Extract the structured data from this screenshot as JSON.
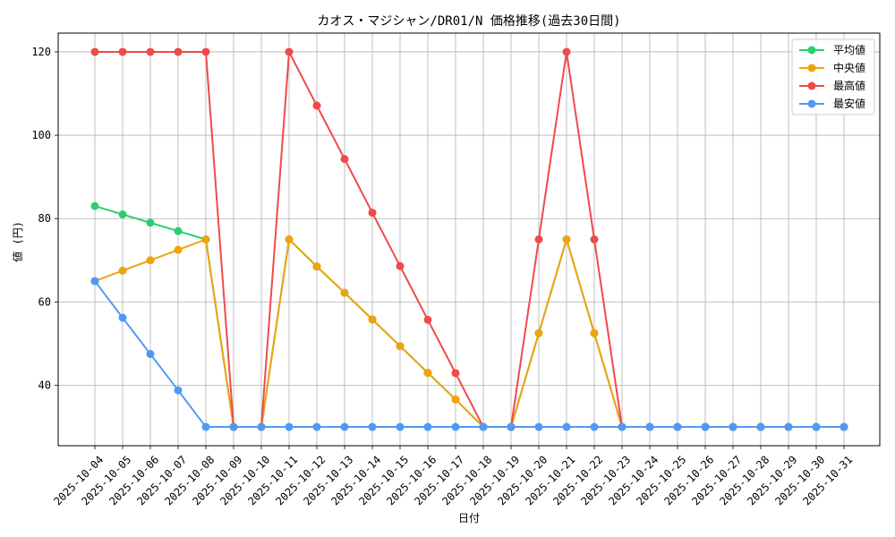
{
  "chart_data": {
    "type": "line",
    "title": "カオス・マジシャン/DR01/N 価格推移(過去30日間)",
    "xlabel": "日付",
    "ylabel": "値 (円)",
    "ylim": [
      25.5,
      124.5
    ],
    "yticks": [
      40,
      60,
      80,
      100,
      120
    ],
    "grid": true,
    "legend_position": "top-right",
    "categories": [
      "2025-10-04",
      "2025-10-05",
      "2025-10-06",
      "2025-10-07",
      "2025-10-08",
      "2025-10-09",
      "2025-10-10",
      "2025-10-11",
      "2025-10-12",
      "2025-10-13",
      "2025-10-14",
      "2025-10-15",
      "2025-10-16",
      "2025-10-17",
      "2025-10-18",
      "2025-10-19",
      "2025-10-20",
      "2025-10-21",
      "2025-10-22",
      "2025-10-23",
      "2025-10-24",
      "2025-10-25",
      "2025-10-26",
      "2025-10-27",
      "2025-10-28",
      "2025-10-29",
      "2025-10-30",
      "2025-10-31"
    ],
    "series": [
      {
        "name": "平均値",
        "color": "#2ecc71",
        "values": [
          83,
          81,
          79,
          77,
          75,
          30,
          30,
          75,
          68.5,
          62.2,
          55.8,
          49.4,
          43,
          36.6,
          30,
          30,
          52.5,
          75,
          52.5,
          30,
          30,
          30,
          30,
          30,
          30,
          30,
          30,
          30
        ]
      },
      {
        "name": "中央値",
        "color": "#f0a30a",
        "values": [
          65,
          67.5,
          70,
          72.5,
          75,
          30,
          30,
          75,
          68.5,
          62.2,
          55.8,
          49.4,
          43,
          36.6,
          30,
          30,
          52.5,
          75,
          52.5,
          30,
          30,
          30,
          30,
          30,
          30,
          30,
          30,
          30
        ]
      },
      {
        "name": "最高値",
        "color": "#f04a4a",
        "values": [
          120,
          120,
          120,
          120,
          120,
          30,
          30,
          120,
          107.1,
          94.3,
          81.4,
          68.6,
          55.7,
          42.9,
          30,
          30,
          75,
          120,
          75,
          30,
          30,
          30,
          30,
          30,
          30,
          30,
          30,
          30
        ]
      },
      {
        "name": "最安値",
        "color": "#4d9af5",
        "values": [
          65,
          56.2,
          47.5,
          38.8,
          30,
          30,
          30,
          30,
          30,
          30,
          30,
          30,
          30,
          30,
          30,
          30,
          30,
          30,
          30,
          30,
          30,
          30,
          30,
          30,
          30,
          30,
          30,
          30
        ]
      }
    ]
  }
}
